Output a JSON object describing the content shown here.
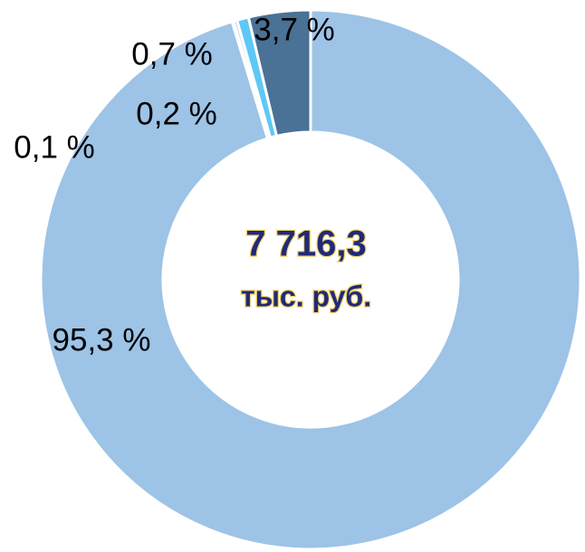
{
  "chart_data": {
    "type": "donut",
    "center_label": [
      "7 716,3",
      "тыс. руб."
    ],
    "series": [
      {
        "name": null,
        "color": "#9dc3e6",
        "values": [
          95.3,
          0.1,
          0.2,
          0.7,
          3.7
        ],
        "colors": [
          "#9dc3e6",
          "#5b8fc7",
          "#a6b5d6",
          "#5ec8f6",
          "#4a7196"
        ],
        "value_labels": [
          "95,3 %",
          "0,1 %",
          "0,2 %",
          "0,7 %",
          "3,7 %"
        ]
      }
    ]
  }
}
